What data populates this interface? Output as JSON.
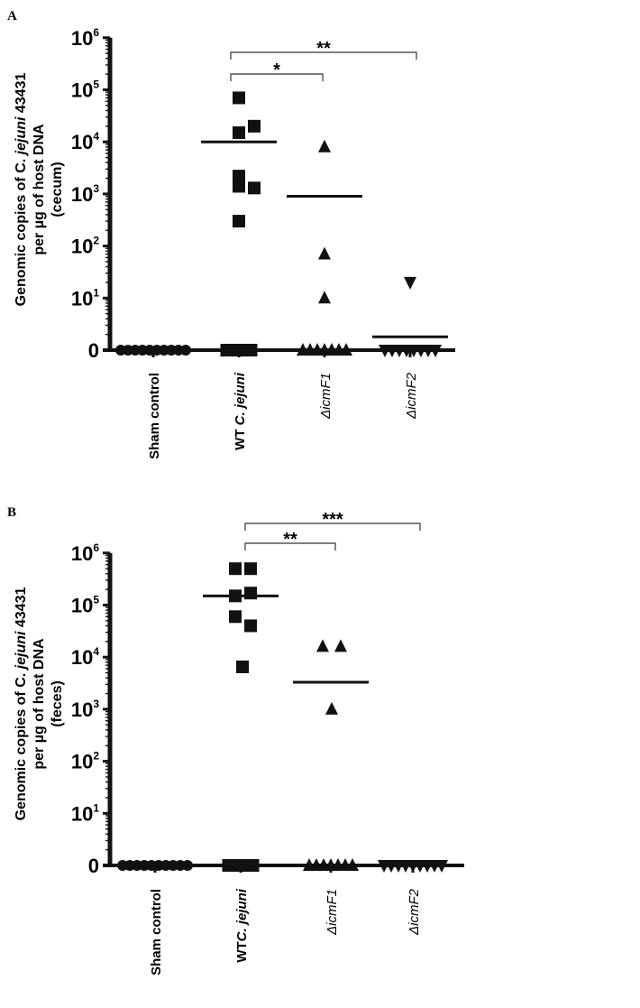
{
  "chart_data": [
    {
      "type": "scatter",
      "panel_label": "A",
      "ylabel_lines": [
        "Genomic copies of C. jejuni 43431",
        "per µg of host DNA",
        "(cecum)"
      ],
      "ylabel_italic": "jejuni",
      "yscale": "log",
      "yticks": [
        {
          "base": "0",
          "exp": ""
        },
        {
          "base": "10",
          "exp": "1"
        },
        {
          "base": "10",
          "exp": "2"
        },
        {
          "base": "10",
          "exp": "3"
        },
        {
          "base": "10",
          "exp": "4"
        },
        {
          "base": "10",
          "exp": "5"
        },
        {
          "base": "10",
          "exp": "6"
        }
      ],
      "ylim": [
        0,
        1000000
      ],
      "categories": [
        "Sham control",
        "WT C. jejuni",
        "ΔicmF1",
        "ΔicmF2"
      ],
      "series": [
        {
          "name": "Sham control",
          "marker": "circle",
          "values": [
            0,
            0,
            0,
            0,
            0,
            0,
            0,
            0,
            0,
            0
          ],
          "mean": 0
        },
        {
          "name": "WT C. jejuni",
          "marker": "square",
          "values": [
            70000,
            20000,
            15000,
            2200,
            1400,
            1300,
            300,
            0,
            0,
            0
          ],
          "mean": 10000
        },
        {
          "name": "ΔicmF1",
          "marker": "triangle-up",
          "values": [
            8000,
            70,
            10,
            0,
            0,
            0,
            0,
            0,
            0,
            0
          ],
          "mean": 900
        },
        {
          "name": "ΔicmF2",
          "marker": "triangle-down",
          "values": [
            20,
            0,
            0,
            0,
            0,
            0,
            0,
            0,
            0
          ],
          "mean": 1.8
        }
      ],
      "significance": [
        {
          "from": "WT C. jejuni",
          "to": "ΔicmF1",
          "label": "*"
        },
        {
          "from": "WT C. jejuni",
          "to": "ΔicmF2",
          "label": "**"
        }
      ]
    },
    {
      "type": "scatter",
      "panel_label": "B",
      "ylabel_lines": [
        "Genomic copies of C. jejuni 43431",
        "per µg of host DNA",
        "(feces)"
      ],
      "ylabel_italic": "jejuni",
      "yscale": "log",
      "yticks": [
        {
          "base": "0",
          "exp": ""
        },
        {
          "base": "10",
          "exp": "1"
        },
        {
          "base": "10",
          "exp": "2"
        },
        {
          "base": "10",
          "exp": "3"
        },
        {
          "base": "10",
          "exp": "4"
        },
        {
          "base": "10",
          "exp": "5"
        },
        {
          "base": "10",
          "exp": "6"
        }
      ],
      "ylim": [
        0,
        1000000
      ],
      "categories": [
        "Sham control",
        "WTC. jejuni",
        "ΔicmF1",
        "ΔicmF2"
      ],
      "series": [
        {
          "name": "Sham control",
          "marker": "circle",
          "values": [
            0,
            0,
            0,
            0,
            0,
            0,
            0,
            0,
            0,
            0
          ],
          "mean": 0
        },
        {
          "name": "WTC. jejuni",
          "marker": "square",
          "values": [
            500000,
            500000,
            150000,
            170000,
            60000,
            40000,
            6500,
            0,
            0,
            0
          ],
          "mean": 150000
        },
        {
          "name": "ΔicmF1",
          "marker": "triangle-up",
          "values": [
            16000,
            16000,
            1000,
            0,
            0,
            0,
            0,
            0,
            0,
            0
          ],
          "mean": 3300
        },
        {
          "name": "ΔicmF2",
          "marker": "triangle-down",
          "values": [
            0,
            0,
            0,
            0,
            0,
            0,
            0,
            0,
            0
          ],
          "mean": 0
        }
      ],
      "significance": [
        {
          "from": "WTC. jejuni",
          "to": "ΔicmF1",
          "label": "**"
        },
        {
          "from": "WTC. jejuni",
          "to": "ΔicmF2",
          "label": "***"
        }
      ]
    }
  ]
}
